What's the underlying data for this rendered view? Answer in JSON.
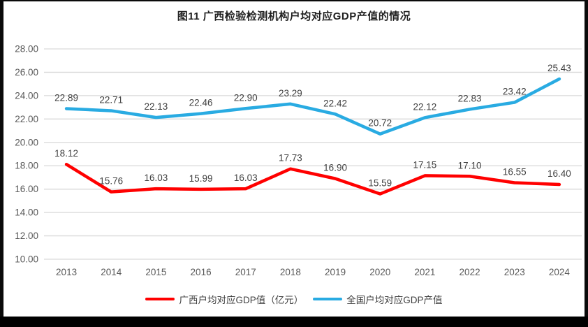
{
  "chart_data": {
    "type": "line",
    "title": "图11 广西检验检测机构户均对应GDP产值的情况",
    "categories": [
      "2013",
      "2014",
      "2015",
      "2016",
      "2017",
      "2018",
      "2019",
      "2020",
      "2021",
      "2022",
      "2023",
      "2024"
    ],
    "series": [
      {
        "name": "广西户均对应GDP值（亿元）",
        "color": "#FF0000",
        "values": [
          18.12,
          15.76,
          16.03,
          15.99,
          16.03,
          17.73,
          16.9,
          15.59,
          17.15,
          17.1,
          16.55,
          16.4
        ]
      },
      {
        "name": "全国户均对应GDP产值",
        "color": "#29ABE2",
        "values": [
          22.89,
          22.71,
          22.13,
          22.46,
          22.9,
          23.29,
          22.42,
          20.72,
          22.12,
          22.83,
          23.42,
          25.43
        ]
      }
    ],
    "y_ticks": [
      "28.00",
      "26.00",
      "24.00",
      "22.00",
      "20.00",
      "18.00",
      "16.00",
      "14.00",
      "12.00",
      "10.00"
    ],
    "ylim": [
      10,
      28
    ],
    "ytick_step": 2,
    "grid": true,
    "data_labels": true,
    "legend_position": "bottom",
    "colors": {
      "gridline": "#D9D9D9",
      "tick_label": "#595959",
      "data_label": "#404040",
      "title": "#1F1F1F",
      "background": "#FFFFFF",
      "frame": "#000000"
    }
  }
}
